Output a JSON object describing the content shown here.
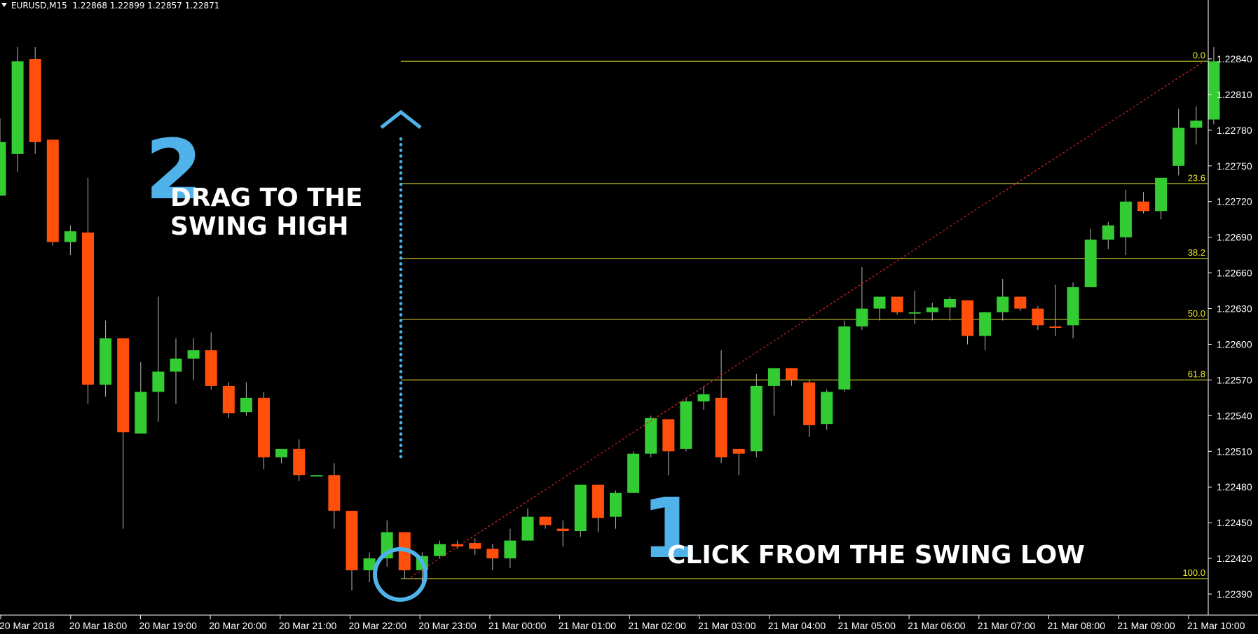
{
  "header": {
    "symbol": "EURUSD,M15",
    "ohlc": "1.22868 1.22899 1.22857 1.22871"
  },
  "annotations": {
    "step1_number": "1",
    "step1_text": "CLICK FROM THE SWING LOW",
    "step2_number": "2",
    "step2_text_line1": "DRAG TO THE",
    "step2_text_line2": "SWING HIGH"
  },
  "colors": {
    "background": "#000000",
    "bull": "#33cc33",
    "bear": "#ff4f0a",
    "fib": "#c8c832",
    "fib_label": "#e8e820",
    "trend": "#cc2222",
    "accent": "#4fb3ea",
    "text": "#ffffff"
  },
  "chart_data": {
    "type": "candlestick",
    "symbol": "EURUSD",
    "timeframe": "M15",
    "ylim": [
      1.2237,
      1.2287
    ],
    "y_ticks": [
      "1.22840",
      "1.22810",
      "1.22780",
      "1.22750",
      "1.22720",
      "1.22690",
      "1.22660",
      "1.22630",
      "1.22600",
      "1.22570",
      "1.22540",
      "1.22510",
      "1.22480",
      "1.22450",
      "1.22420",
      "1.22390"
    ],
    "x_ticks": [
      "20 Mar 2018",
      "20 Mar 18:00",
      "20 Mar 19:00",
      "20 Mar 20:00",
      "20 Mar 21:00",
      "20 Mar 22:00",
      "20 Mar 23:00",
      "21 Mar 00:00",
      "21 Mar 01:00",
      "21 Mar 02:00",
      "21 Mar 03:00",
      "21 Mar 04:00",
      "21 Mar 05:00",
      "21 Mar 06:00",
      "21 Mar 07:00",
      "21 Mar 08:00",
      "21 Mar 09:00",
      "21 Mar 10:00"
    ],
    "candles": [
      {
        "o": 1.22725,
        "h": 1.2279,
        "l": 1.22725,
        "c": 1.2277
      },
      {
        "o": 1.2276,
        "h": 1.2285,
        "l": 1.22745,
        "c": 1.22838
      },
      {
        "o": 1.2284,
        "h": 1.2285,
        "l": 1.2276,
        "c": 1.2277
      },
      {
        "o": 1.22772,
        "h": 1.22772,
        "l": 1.22683,
        "c": 1.22686
      },
      {
        "o": 1.22686,
        "h": 1.227,
        "l": 1.22675,
        "c": 1.22695
      },
      {
        "o": 1.22694,
        "h": 1.2274,
        "l": 1.2255,
        "c": 1.22566
      },
      {
        "o": 1.22566,
        "h": 1.2262,
        "l": 1.22556,
        "c": 1.22605
      },
      {
        "o": 1.22605,
        "h": 1.22605,
        "l": 1.22445,
        "c": 1.22526
      },
      {
        "o": 1.22525,
        "h": 1.22585,
        "l": 1.22525,
        "c": 1.2256
      },
      {
        "o": 1.2256,
        "h": 1.2264,
        "l": 1.22535,
        "c": 1.22577
      },
      {
        "o": 1.22577,
        "h": 1.22605,
        "l": 1.2255,
        "c": 1.22588
      },
      {
        "o": 1.22588,
        "h": 1.22605,
        "l": 1.2257,
        "c": 1.22595
      },
      {
        "o": 1.22595,
        "h": 1.2261,
        "l": 1.22562,
        "c": 1.22565
      },
      {
        "o": 1.22565,
        "h": 1.22568,
        "l": 1.22538,
        "c": 1.22542
      },
      {
        "o": 1.22543,
        "h": 1.22568,
        "l": 1.2254,
        "c": 1.22555
      },
      {
        "o": 1.22555,
        "h": 1.2256,
        "l": 1.22495,
        "c": 1.22505
      },
      {
        "o": 1.22505,
        "h": 1.22512,
        "l": 1.225,
        "c": 1.22512
      },
      {
        "o": 1.22512,
        "h": 1.2252,
        "l": 1.22485,
        "c": 1.2249
      },
      {
        "o": 1.2249,
        "h": 1.2249,
        "l": 1.2249,
        "c": 1.2249
      },
      {
        "o": 1.2249,
        "h": 1.225,
        "l": 1.22445,
        "c": 1.2246
      },
      {
        "o": 1.2246,
        "h": 1.2246,
        "l": 1.22393,
        "c": 1.2241
      },
      {
        "o": 1.2241,
        "h": 1.22425,
        "l": 1.224,
        "c": 1.2242
      },
      {
        "o": 1.2242,
        "h": 1.22452,
        "l": 1.22413,
        "c": 1.22442
      },
      {
        "o": 1.22442,
        "h": 1.22442,
        "l": 1.22403,
        "c": 1.2241
      },
      {
        "o": 1.2241,
        "h": 1.22425,
        "l": 1.224,
        "c": 1.22422
      },
      {
        "o": 1.22422,
        "h": 1.22435,
        "l": 1.2242,
        "c": 1.22432
      },
      {
        "o": 1.22432,
        "h": 1.22435,
        "l": 1.22428,
        "c": 1.2243
      },
      {
        "o": 1.22433,
        "h": 1.22437,
        "l": 1.22423,
        "c": 1.22428
      },
      {
        "o": 1.22428,
        "h": 1.22432,
        "l": 1.2241,
        "c": 1.2242
      },
      {
        "o": 1.2242,
        "h": 1.22445,
        "l": 1.22412,
        "c": 1.22435
      },
      {
        "o": 1.22435,
        "h": 1.22462,
        "l": 1.22435,
        "c": 1.22455
      },
      {
        "o": 1.22455,
        "h": 1.22455,
        "l": 1.22445,
        "c": 1.22448
      },
      {
        "o": 1.22445,
        "h": 1.22452,
        "l": 1.2243,
        "c": 1.22443
      },
      {
        "o": 1.22443,
        "h": 1.22482,
        "l": 1.22438,
        "c": 1.22482
      },
      {
        "o": 1.22482,
        "h": 1.22482,
        "l": 1.22442,
        "c": 1.22454
      },
      {
        "o": 1.22455,
        "h": 1.22477,
        "l": 1.22445,
        "c": 1.22475
      },
      {
        "o": 1.22475,
        "h": 1.2251,
        "l": 1.22475,
        "c": 1.22508
      },
      {
        "o": 1.22508,
        "h": 1.2254,
        "l": 1.22505,
        "c": 1.22538
      },
      {
        "o": 1.22537,
        "h": 1.22537,
        "l": 1.2249,
        "c": 1.2251
      },
      {
        "o": 1.22512,
        "h": 1.22555,
        "l": 1.2251,
        "c": 1.22552
      },
      {
        "o": 1.22552,
        "h": 1.22565,
        "l": 1.22545,
        "c": 1.22558
      },
      {
        "o": 1.22555,
        "h": 1.22595,
        "l": 1.225,
        "c": 1.22505
      },
      {
        "o": 1.22512,
        "h": 1.22512,
        "l": 1.2249,
        "c": 1.22508
      },
      {
        "o": 1.2251,
        "h": 1.22575,
        "l": 1.22505,
        "c": 1.22565
      },
      {
        "o": 1.22565,
        "h": 1.2258,
        "l": 1.2254,
        "c": 1.2258
      },
      {
        "o": 1.2258,
        "h": 1.2258,
        "l": 1.22565,
        "c": 1.2257
      },
      {
        "o": 1.22568,
        "h": 1.2257,
        "l": 1.22522,
        "c": 1.22532
      },
      {
        "o": 1.22533,
        "h": 1.22562,
        "l": 1.22528,
        "c": 1.2256
      },
      {
        "o": 1.22562,
        "h": 1.2262,
        "l": 1.2256,
        "c": 1.22615
      },
      {
        "o": 1.22615,
        "h": 1.22665,
        "l": 1.22612,
        "c": 1.2263
      },
      {
        "o": 1.2263,
        "h": 1.2264,
        "l": 1.2262,
        "c": 1.2264
      },
      {
        "o": 1.2264,
        "h": 1.2264,
        "l": 1.22625,
        "c": 1.22627
      },
      {
        "o": 1.22627,
        "h": 1.22645,
        "l": 1.22617,
        "c": 1.22627
      },
      {
        "o": 1.22627,
        "h": 1.22635,
        "l": 1.2262,
        "c": 1.22631
      },
      {
        "o": 1.22631,
        "h": 1.2264,
        "l": 1.2262,
        "c": 1.22638
      },
      {
        "o": 1.22637,
        "h": 1.22637,
        "l": 1.226,
        "c": 1.22607
      },
      {
        "o": 1.22607,
        "h": 1.22627,
        "l": 1.22595,
        "c": 1.22627
      },
      {
        "o": 1.22627,
        "h": 1.22655,
        "l": 1.2262,
        "c": 1.2264
      },
      {
        "o": 1.2264,
        "h": 1.2264,
        "l": 1.22628,
        "c": 1.2263
      },
      {
        "o": 1.2263,
        "h": 1.22632,
        "l": 1.22612,
        "c": 1.22616
      },
      {
        "o": 1.22615,
        "h": 1.2265,
        "l": 1.22607,
        "c": 1.22614
      },
      {
        "o": 1.22616,
        "h": 1.22652,
        "l": 1.22605,
        "c": 1.22648
      },
      {
        "o": 1.22648,
        "h": 1.22697,
        "l": 1.22648,
        "c": 1.22688
      },
      {
        "o": 1.22688,
        "h": 1.22703,
        "l": 1.2268,
        "c": 1.227
      },
      {
        "o": 1.2269,
        "h": 1.2273,
        "l": 1.22675,
        "c": 1.2272
      },
      {
        "o": 1.2272,
        "h": 1.22728,
        "l": 1.2271,
        "c": 1.22712
      },
      {
        "o": 1.22712,
        "h": 1.2274,
        "l": 1.22705,
        "c": 1.2274
      },
      {
        "o": 1.2275,
        "h": 1.22798,
        "l": 1.22742,
        "c": 1.22782
      },
      {
        "o": 1.22782,
        "h": 1.228,
        "l": 1.22768,
        "c": 1.22788
      },
      {
        "o": 1.22789,
        "h": 1.2285,
        "l": 1.22785,
        "c": 1.22838
      }
    ],
    "fibonacci": {
      "swing_low": 1.22403,
      "swing_high": 1.22838,
      "levels": [
        {
          "label": "0.0",
          "price": 1.22838
        },
        {
          "label": "23.6",
          "price": 1.22735
        },
        {
          "label": "38.2",
          "price": 1.22672
        },
        {
          "label": "50.0",
          "price": 1.22621
        },
        {
          "label": "61.8",
          "price": 1.2257
        },
        {
          "label": "100.0",
          "price": 1.22403
        }
      ]
    }
  }
}
